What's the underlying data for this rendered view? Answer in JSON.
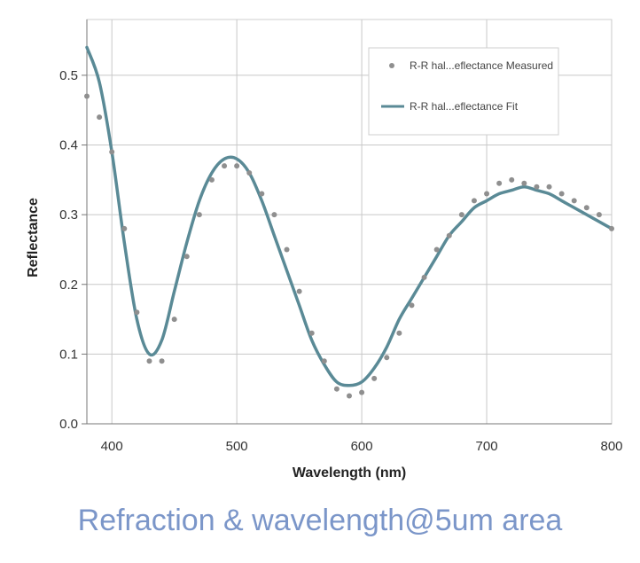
{
  "caption": "Refraction & wavelength@5um area",
  "colors": {
    "fit_line": "#5a8a96",
    "measured_points": "#8f8f8f",
    "grid": "#c8c8c8",
    "caption": "#7b96c9"
  },
  "chart_data": {
    "type": "line",
    "title": "",
    "xlabel": "Wavelength (nm)",
    "ylabel": "Reflectance",
    "xlim": [
      380,
      800
    ],
    "ylim": [
      0,
      0.58
    ],
    "xticks": [
      400,
      500,
      600,
      700,
      800
    ],
    "yticks": [
      0.0,
      0.1,
      0.2,
      0.3,
      0.4,
      0.5
    ],
    "ytick_labels": [
      "0.0",
      "0.1",
      "0.2",
      "0.3",
      "0.4",
      "0.5"
    ],
    "grid": true,
    "legend_position": "top-right",
    "series": [
      {
        "name": "R-R hal...eflectance Measured",
        "kind": "scatter",
        "x": [
          380,
          390,
          400,
          410,
          420,
          430,
          440,
          450,
          460,
          470,
          480,
          490,
          500,
          510,
          520,
          530,
          540,
          550,
          560,
          570,
          580,
          590,
          600,
          610,
          620,
          630,
          640,
          650,
          660,
          670,
          680,
          690,
          700,
          710,
          720,
          730,
          740,
          750,
          760,
          770,
          780,
          790,
          800
        ],
        "y": [
          0.47,
          0.44,
          0.39,
          0.28,
          0.16,
          0.09,
          0.09,
          0.15,
          0.24,
          0.3,
          0.35,
          0.37,
          0.37,
          0.36,
          0.33,
          0.3,
          0.25,
          0.19,
          0.13,
          0.09,
          0.05,
          0.04,
          0.045,
          0.065,
          0.095,
          0.13,
          0.17,
          0.21,
          0.25,
          0.27,
          0.3,
          0.32,
          0.33,
          0.345,
          0.35,
          0.345,
          0.34,
          0.34,
          0.33,
          0.32,
          0.31,
          0.3,
          0.28
        ]
      },
      {
        "name": "R-R hal...eflectance Fit",
        "kind": "line",
        "x": [
          380,
          390,
          400,
          410,
          420,
          430,
          440,
          450,
          460,
          470,
          480,
          490,
          500,
          510,
          520,
          530,
          540,
          550,
          560,
          570,
          580,
          590,
          600,
          610,
          620,
          630,
          640,
          650,
          660,
          670,
          680,
          690,
          700,
          710,
          720,
          730,
          740,
          750,
          760,
          770,
          780,
          790,
          800
        ],
        "y": [
          0.54,
          0.49,
          0.39,
          0.26,
          0.15,
          0.1,
          0.12,
          0.19,
          0.26,
          0.32,
          0.36,
          0.38,
          0.38,
          0.36,
          0.32,
          0.27,
          0.22,
          0.17,
          0.12,
          0.085,
          0.06,
          0.055,
          0.06,
          0.08,
          0.11,
          0.15,
          0.18,
          0.21,
          0.24,
          0.27,
          0.29,
          0.31,
          0.32,
          0.33,
          0.335,
          0.34,
          0.335,
          0.33,
          0.32,
          0.31,
          0.3,
          0.29,
          0.28
        ]
      }
    ]
  }
}
